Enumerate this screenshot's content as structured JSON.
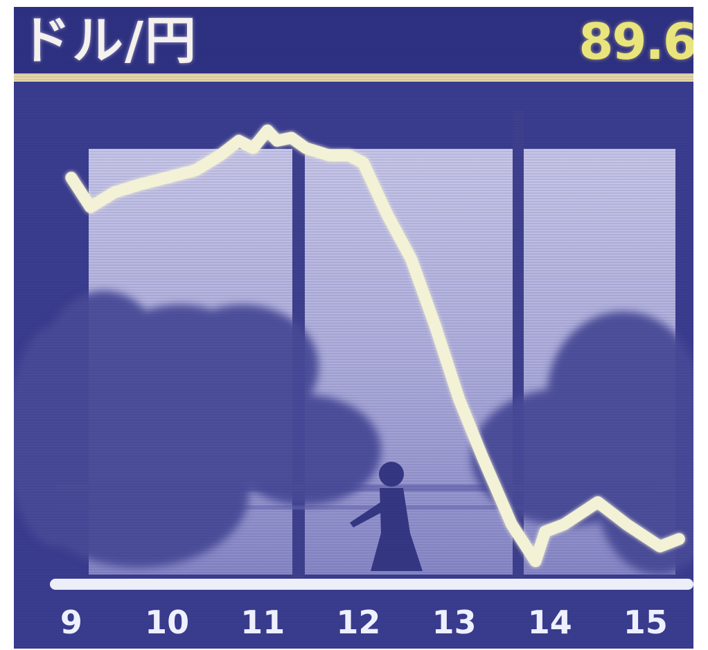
{
  "board": {
    "title": "ドル/円",
    "rate": "89.6"
  },
  "chart_data": {
    "type": "line",
    "title": "ドル/円",
    "xlabel": "",
    "ylabel": "",
    "x_ticks": [
      "9",
      "10",
      "11",
      "12",
      "13",
      "14",
      "15"
    ],
    "series": [
      {
        "values": [
          [
            9.0,
            91.3
          ],
          [
            9.2,
            91.1
          ],
          [
            9.45,
            91.2
          ],
          [
            9.7,
            91.25
          ],
          [
            10.0,
            91.3
          ],
          [
            10.3,
            91.35
          ],
          [
            10.55,
            91.45
          ],
          [
            10.75,
            91.55
          ],
          [
            10.9,
            91.5
          ],
          [
            11.05,
            91.62
          ],
          [
            11.15,
            91.55
          ],
          [
            11.3,
            91.57
          ],
          [
            11.45,
            91.5
          ],
          [
            11.7,
            91.45
          ],
          [
            11.9,
            91.45
          ],
          [
            12.05,
            91.4
          ],
          [
            12.3,
            91.05
          ],
          [
            12.55,
            90.75
          ],
          [
            12.8,
            90.3
          ],
          [
            13.05,
            89.8
          ],
          [
            13.3,
            89.4
          ],
          [
            13.6,
            88.95
          ],
          [
            13.85,
            88.7
          ],
          [
            13.95,
            88.9
          ],
          [
            14.15,
            88.95
          ],
          [
            14.5,
            89.1
          ],
          [
            14.8,
            88.95
          ],
          [
            15.15,
            88.8
          ],
          [
            15.35,
            88.85
          ]
        ]
      }
    ],
    "xlim": [
      8.4,
      15.5
    ],
    "ylim": [
      88.6,
      91.8
    ],
    "grid": false,
    "legend": "none"
  },
  "colors": {
    "background": "#3a3c8e",
    "panel_light": "#c9c9ec",
    "line": "#f3f2d6",
    "rate_text": "#e9e57c",
    "divider": "#e8d9a6",
    "baseline": "#eceef8"
  }
}
